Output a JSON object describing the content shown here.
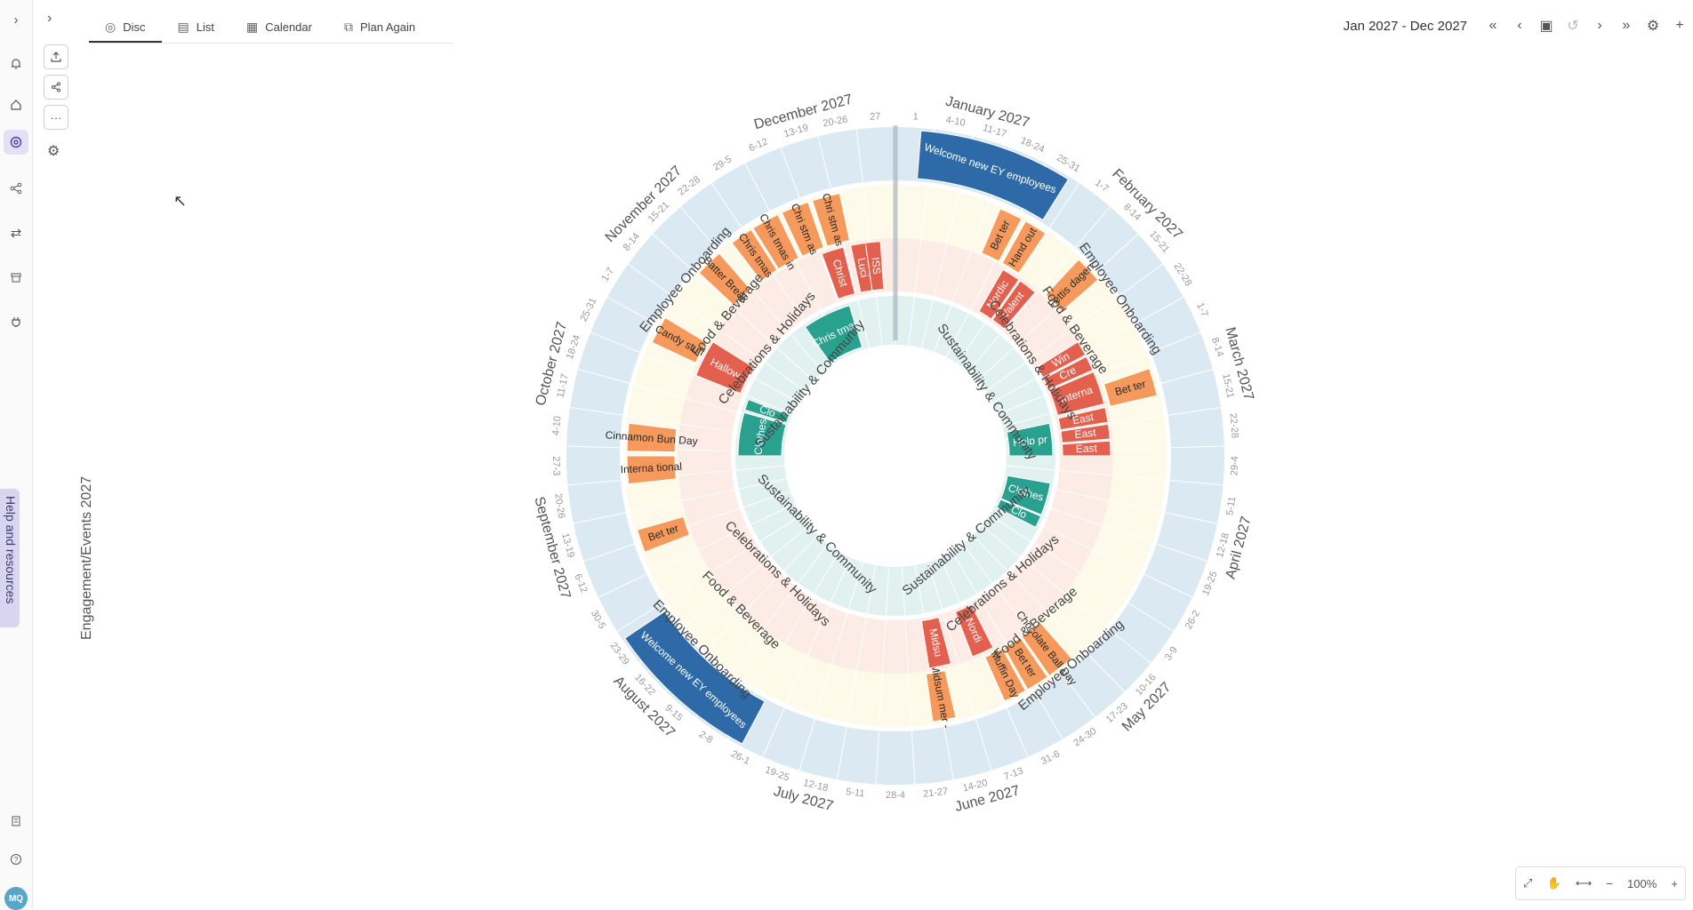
{
  "rail": {
    "icons": [
      "chevron-right-icon",
      "bell-icon",
      "home-icon",
      "disc-icon",
      "share-network-icon",
      "transfer-icon",
      "archive-icon",
      "plug-icon",
      "building-icon",
      "help-circle-icon"
    ],
    "avatar_initials": "MQ",
    "help_tab": "Help and resources"
  },
  "side_panel": {
    "title": "Engagement/Events 2027",
    "buttons": [
      "export-icon",
      "share-icon",
      "more-icon",
      "settings-icon"
    ],
    "more_label": "···"
  },
  "tabs": [
    {
      "label": "Disc",
      "icon": "disc-icon",
      "active": true
    },
    {
      "label": "List",
      "icon": "list-icon",
      "active": false
    },
    {
      "label": "Calendar",
      "icon": "calendar-icon",
      "active": false
    },
    {
      "label": "Plan Again",
      "icon": "replan-icon",
      "active": false
    }
  ],
  "header": {
    "range": "Jan 2027 - Dec 2027"
  },
  "zoom": {
    "level": "100%"
  },
  "colors": {
    "onboarding": "#2f6aa8",
    "onboarding_ring": "#dbeaf2",
    "food": "#f59a5c",
    "food_ring": "#fdfaea",
    "celebration": "#e4604e",
    "celebration_ring": "#fdece6",
    "sustainability": "#2aa08f",
    "sustainability_ring": "#e1f1ef"
  },
  "disc": {
    "months": [
      "January 2027",
      "February 2027",
      "March 2027",
      "April 2027",
      "May 2027",
      "June 2027",
      "July 2027",
      "August 2027",
      "September 2027",
      "October 2027",
      "November 2027",
      "December 2027"
    ],
    "weeks": [
      "4-10",
      "11-17",
      "18-24",
      "25-31",
      "1-7",
      "8-14",
      "15-21",
      "22-28",
      "1-7",
      "8-14",
      "15-21",
      "22-28",
      "29-4",
      "5-11",
      "12-18",
      "19-25",
      "26-2",
      "3-9",
      "10-16",
      "17-23",
      "24-30",
      "31-6",
      "7-13",
      "14-20",
      "21-27",
      "28-4",
      "5-11",
      "12-18",
      "19-25",
      "26-1",
      "2-8",
      "9-15",
      "16-22",
      "23-29",
      "30-5",
      "6-12",
      "13-19",
      "20-26",
      "27-3",
      "4-10",
      "11-17",
      "18-24",
      "25-31",
      "1-7",
      "8-14",
      "15-21",
      "22-28",
      "29-5",
      "6-12",
      "13-19",
      "20-26",
      "27"
    ],
    "week_first": "1",
    "rings": [
      {
        "label": "Employee Onboarding",
        "labels_at_deg": [
          55,
          225,
          310,
          140
        ]
      },
      {
        "label": "Food & Beverage",
        "labels_at_deg": [
          55,
          225,
          310,
          140
        ]
      },
      {
        "label": "Celebrations & Holidays",
        "labels_at_deg": [
          55,
          225,
          310,
          140
        ]
      },
      {
        "label": "Sustainability & Community",
        "labels_at_deg": [
          55,
          225,
          310,
          140
        ]
      }
    ],
    "events": [
      {
        "ring": 0,
        "label": "Welcome new EY employees",
        "start_deg": 4.5,
        "end_deg": 32
      },
      {
        "ring": 0,
        "label": "Welcome new EY employees",
        "start_deg": 208,
        "end_deg": 236
      },
      {
        "ring": 1,
        "label": "Bet ter",
        "start_deg": 23,
        "end_deg": 28
      },
      {
        "ring": 1,
        "label": "Hand out",
        "start_deg": 29,
        "end_deg": 34
      },
      {
        "ring": 1,
        "label": "Fettis dagen",
        "start_deg": 43,
        "end_deg": 49
      },
      {
        "ring": 1,
        "label": "Bet ter",
        "start_deg": 71,
        "end_deg": 77
      },
      {
        "ring": 1,
        "label": "Chocolate Ball Day",
        "start_deg": 139,
        "end_deg": 145
      },
      {
        "ring": 1,
        "label": "Bet ter",
        "start_deg": 145.5,
        "end_deg": 150.5
      },
      {
        "ring": 1,
        "label": "Muffin Day",
        "start_deg": 151,
        "end_deg": 156
      },
      {
        "ring": 1,
        "label": "Midsum mer -",
        "start_deg": 167,
        "end_deg": 172
      },
      {
        "ring": 1,
        "label": "Bet ter",
        "start_deg": 249,
        "end_deg": 254
      },
      {
        "ring": 1,
        "label": "Interna tional",
        "start_deg": 264,
        "end_deg": 270
      },
      {
        "ring": 1,
        "label": "Cinnamon Bun Day",
        "start_deg": 271,
        "end_deg": 277
      },
      {
        "ring": 1,
        "label": "Candy stuff",
        "start_deg": 295,
        "end_deg": 301
      },
      {
        "ring": 1,
        "label": "Batter Break",
        "start_deg": 313,
        "end_deg": 319
      },
      {
        "ring": 1,
        "label": "Chris tmas",
        "start_deg": 322.5,
        "end_deg": 327.5
      },
      {
        "ring": 1,
        "label": "Chris tmas in",
        "start_deg": 328,
        "end_deg": 334
      },
      {
        "ring": 1,
        "label": "Chri stm as",
        "start_deg": 335,
        "end_deg": 341
      },
      {
        "ring": 1,
        "label": "Chri stm as",
        "start_deg": 342,
        "end_deg": 348
      },
      {
        "ring": 2,
        "label": "Nordic",
        "start_deg": 30,
        "end_deg": 35
      },
      {
        "ring": 2,
        "label": "Valent",
        "start_deg": 35.5,
        "end_deg": 40.5
      },
      {
        "ring": 2,
        "label": "Win",
        "start_deg": 58,
        "end_deg": 62
      },
      {
        "ring": 2,
        "label": "Cre",
        "start_deg": 62.5,
        "end_deg": 66.5
      },
      {
        "ring": 2,
        "label": "Interna",
        "start_deg": 67,
        "end_deg": 76
      },
      {
        "ring": 2,
        "label": "East",
        "start_deg": 77,
        "end_deg": 81
      },
      {
        "ring": 2,
        "label": "East",
        "start_deg": 81.5,
        "end_deg": 85.5
      },
      {
        "ring": 2,
        "label": "East",
        "start_deg": 86,
        "end_deg": 90
      },
      {
        "ring": 2,
        "label": "Nordi",
        "start_deg": 153,
        "end_deg": 159
      },
      {
        "ring": 2,
        "label": "Midsu",
        "start_deg": 165,
        "end_deg": 171
      },
      {
        "ring": 2,
        "label": "Hallow",
        "start_deg": 292,
        "end_deg": 302
      },
      {
        "ring": 2,
        "label": "Christ",
        "start_deg": 340,
        "end_deg": 346
      },
      {
        "ring": 2,
        "label": "Luci",
        "start_deg": 348,
        "end_deg": 352
      },
      {
        "ring": 2,
        "label": "ISS",
        "start_deg": 352,
        "end_deg": 356
      },
      {
        "ring": 3,
        "label": "Help pr",
        "start_deg": 78,
        "end_deg": 90
      },
      {
        "ring": 3,
        "label": "Clothes",
        "start_deg": 100,
        "end_deg": 112
      },
      {
        "ring": 3,
        "label": "Clo",
        "start_deg": 112.5,
        "end_deg": 117
      },
      {
        "ring": 3,
        "label": "Clo",
        "start_deg": 287,
        "end_deg": 291
      },
      {
        "ring": 3,
        "label": "Clothes",
        "start_deg": 270,
        "end_deg": 286
      },
      {
        "ring": 3,
        "label": "Chris tmas",
        "start_deg": 325,
        "end_deg": 343
      }
    ]
  }
}
